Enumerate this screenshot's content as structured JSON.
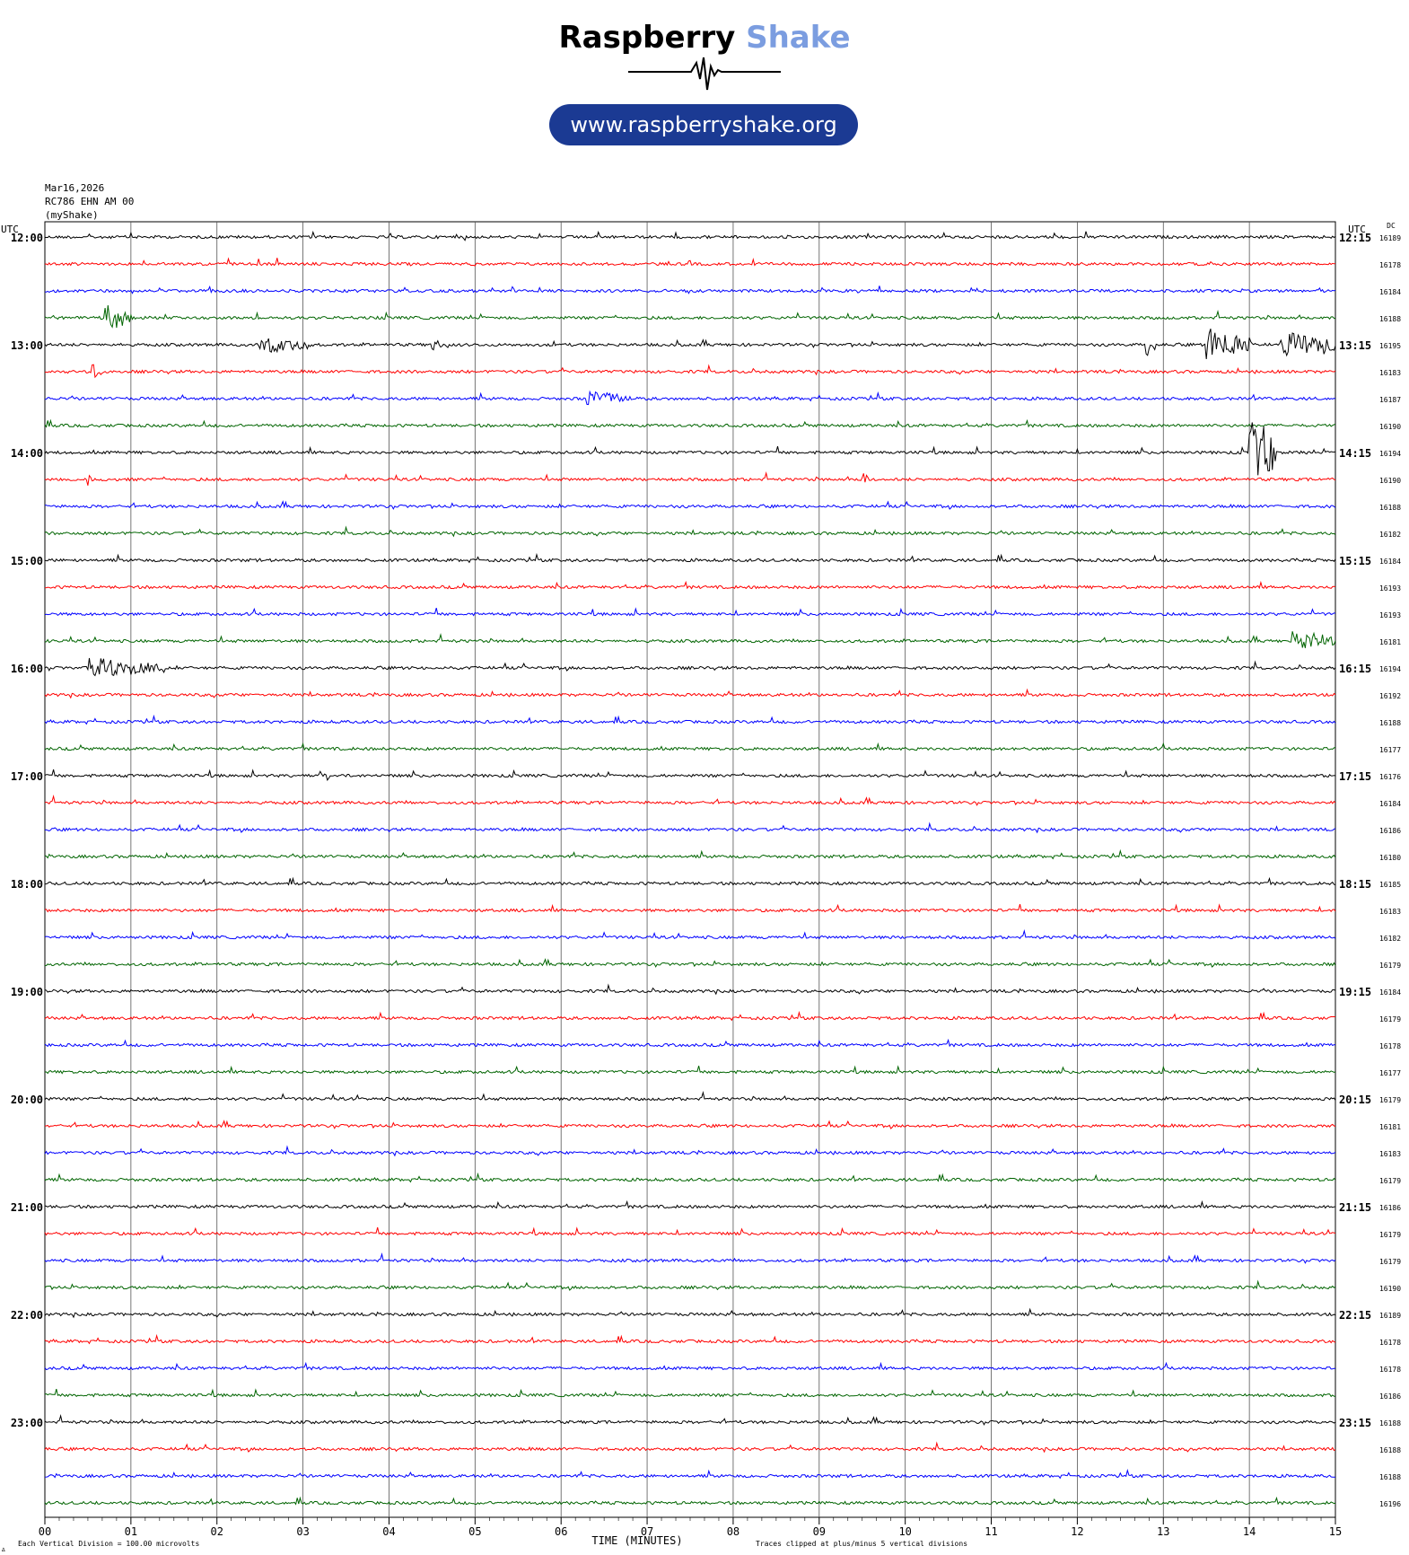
{
  "logo": {
    "brand_part1": "Raspberry",
    "brand_part2": "Shake",
    "url": "www.raspberryshake.org",
    "brand_color": "#7b9de0",
    "pill_color": "#1b3a93"
  },
  "header": {
    "date": "Mar16,2026",
    "station": "RC786 EHN AM 00",
    "source": "(myShake)"
  },
  "chart_data": {
    "type": "line",
    "title": "",
    "left_axis_label": "UTC",
    "right_axis_label": "UTC",
    "dc_label": "DC",
    "xlabel": "TIME (MINUTES)",
    "x_ticks": [
      "00",
      "01",
      "02",
      "03",
      "04",
      "05",
      "06",
      "07",
      "08",
      "09",
      "10",
      "11",
      "12",
      "13",
      "14",
      "15"
    ],
    "xlim": [
      0,
      15
    ],
    "grid_vertical": true,
    "left_hours": [
      "12:00",
      "13:00",
      "14:00",
      "15:00",
      "16:00",
      "17:00",
      "18:00",
      "19:00",
      "20:00",
      "21:00",
      "22:00",
      "23:00"
    ],
    "right_hours": [
      "12:15",
      "13:15",
      "14:15",
      "15:15",
      "16:15",
      "17:15",
      "18:15",
      "19:15",
      "20:15",
      "21:15",
      "22:15",
      "23:15"
    ],
    "trace_colors": [
      "#000000",
      "#ff0000",
      "#0000ff",
      "#006400"
    ],
    "dc_values": [
      "16189",
      "16178",
      "16184",
      "16188",
      "16195",
      "16183",
      "16187",
      "16190",
      "16194",
      "16190",
      "16188",
      "16182",
      "16184",
      "16193",
      "16193",
      "16181",
      "16194",
      "16192",
      "16188",
      "16177",
      "16176",
      "16184",
      "16186",
      "16180",
      "16185",
      "16183",
      "16182",
      "16179",
      "16184",
      "16179",
      "16178",
      "16177",
      "16179",
      "16181",
      "16183",
      "16179",
      "16186",
      "16179",
      "16179",
      "16190",
      "16189",
      "16178",
      "16178",
      "16186",
      "16188",
      "16188",
      "16188",
      "16196"
    ],
    "events": [
      {
        "trace": 3,
        "minute": 0.7,
        "amp": 2.5,
        "dur": 0.3
      },
      {
        "trace": 4,
        "minute": 2.5,
        "amp": 1.5,
        "dur": 0.6
      },
      {
        "trace": 4,
        "minute": 4.5,
        "amp": 1.0,
        "dur": 0.2
      },
      {
        "trace": 4,
        "minute": 12.8,
        "amp": 3.0,
        "dur": 0.1
      },
      {
        "trace": 4,
        "minute": 13.5,
        "amp": 3.5,
        "dur": 0.5
      },
      {
        "trace": 4,
        "minute": 14.4,
        "amp": 2.5,
        "dur": 0.6
      },
      {
        "trace": 5,
        "minute": 0.55,
        "amp": 1.5,
        "dur": 0.1
      },
      {
        "trace": 6,
        "minute": 6.3,
        "amp": 1.5,
        "dur": 0.5
      },
      {
        "trace": 8,
        "minute": 14.0,
        "amp": 7.0,
        "dur": 0.3
      },
      {
        "trace": 9,
        "minute": 0.5,
        "amp": 2.0,
        "dur": 0.08
      },
      {
        "trace": 9,
        "minute": 9.5,
        "amp": 1.8,
        "dur": 0.08
      },
      {
        "trace": 15,
        "minute": 14.5,
        "amp": 1.8,
        "dur": 0.5
      },
      {
        "trace": 16,
        "minute": 0.5,
        "amp": 1.8,
        "dur": 0.9
      },
      {
        "trace": 20,
        "minute": 3.2,
        "amp": 1.5,
        "dur": 0.1
      }
    ],
    "footer_left": "Each Vertical Division =  100.00 microvolts",
    "footer_right": "Traces clipped at plus/minus 5 vertical divisions"
  }
}
